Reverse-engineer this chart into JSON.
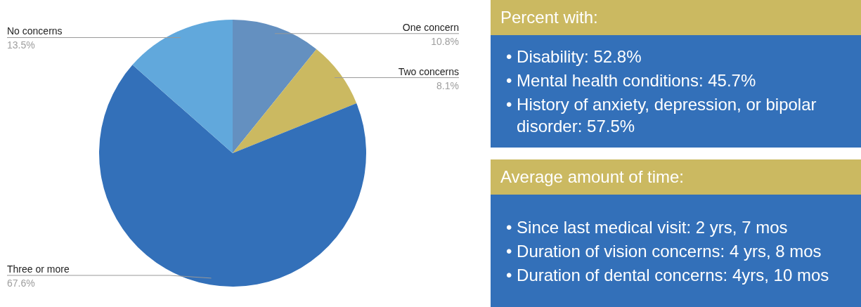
{
  "chart_data": [
    {
      "type": "pie",
      "categories": [
        "One concern",
        "Two concerns",
        "Three or more",
        "No concerns"
      ],
      "values": [
        10.8,
        8.1,
        67.6,
        13.5
      ],
      "colors": [
        "#6490c0",
        "#cbb961",
        "#3370b9",
        "#61a8dc"
      ],
      "value_labels": [
        "10.8%",
        "8.1%",
        "67.6%",
        "13.5%"
      ]
    },
    {
      "type": "other",
      "title": "Percent with:",
      "annotations": [
        "• Disability: 52.8%",
        "• Mental health conditions: 45.7%",
        "• History of anxiety, depression, or bipolar disorder: 57.5%"
      ]
    },
    {
      "type": "other",
      "title": "Average amount of time:",
      "annotations": [
        "• Since last medical visit: 2 yrs, 7 mos",
        "• Duration of vision concerns: 4 yrs, 8 mos",
        "• Duration of dental concerns: 4yrs, 10 mos"
      ]
    }
  ]
}
